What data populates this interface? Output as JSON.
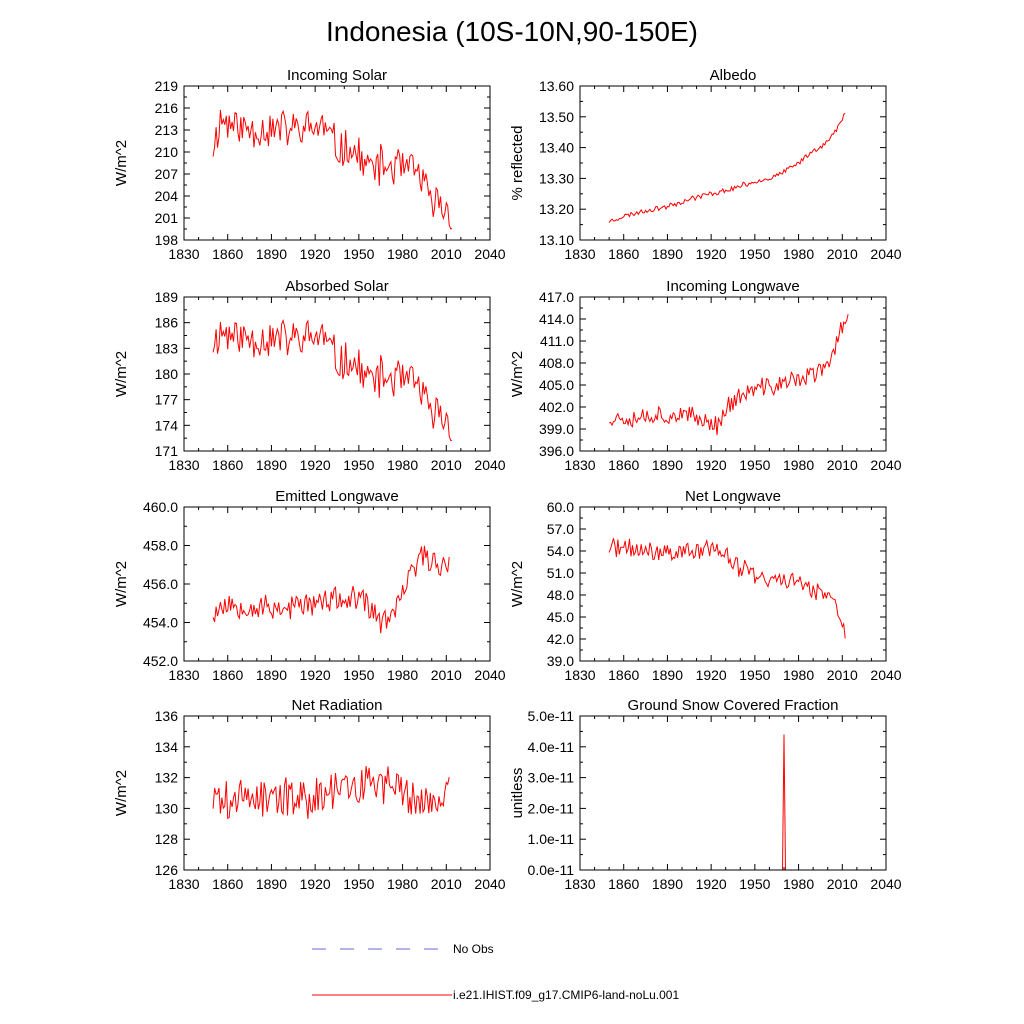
{
  "figure": {
    "title": "Indonesia (10S-10N,90-150E)",
    "legend": [
      {
        "label": "No Obs",
        "color": "#6a6ad0",
        "dash": "dashed"
      },
      {
        "label": "i.e21.IHIST.f09_g17.CMIP6-land-noLu.001",
        "color": "#ff0000",
        "dash": "solid"
      }
    ]
  },
  "chart_data": [
    {
      "type": "line",
      "title": "Incoming Solar",
      "xlabel": "",
      "ylabel": "W/m^2",
      "xlim": [
        1830,
        2040
      ],
      "ylim": [
        198,
        219
      ],
      "xticks": [
        "1830",
        "1860",
        "1890",
        "1920",
        "1950",
        "1980",
        "2010",
        "2040"
      ],
      "yticks": [
        "198",
        "201",
        "204",
        "207",
        "210",
        "213",
        "216",
        "219"
      ],
      "color": "#ff0000",
      "series": [
        {
          "x_start": 1850,
          "x_end": 2014,
          "anchors": [
            [
              1850,
              210.5
            ],
            [
              1855,
              214.5
            ],
            [
              1870,
              213.2
            ],
            [
              1890,
              213.2
            ],
            [
              1910,
              213
            ],
            [
              1925,
              213.5
            ],
            [
              1935,
              210.5
            ],
            [
              1945,
              210.5
            ],
            [
              1955,
              208
            ],
            [
              1975,
              208
            ],
            [
              1985,
              207.5
            ],
            [
              1993,
              207
            ],
            [
              1998,
              203
            ],
            [
              2005,
              203
            ],
            [
              2014,
              201
            ]
          ],
          "amp": 3.2,
          "seed": 11
        }
      ]
    },
    {
      "type": "line",
      "title": "Albedo",
      "xlabel": "",
      "ylabel": "% reflected",
      "xlim": [
        1830,
        2040
      ],
      "ylim": [
        13.1,
        13.6
      ],
      "xticks": [
        "1830",
        "1860",
        "1890",
        "1920",
        "1950",
        "1980",
        "2010",
        "2040"
      ],
      "yticks": [
        "13.10",
        "13.20",
        "13.30",
        "13.40",
        "13.50",
        "13.60"
      ],
      "color": "#ff0000",
      "series": [
        {
          "x_start": 1850,
          "x_end": 2012,
          "anchors": [
            [
              1850,
              13.16
            ],
            [
              1855,
              13.17
            ],
            [
              1870,
              13.19
            ],
            [
              1890,
              13.21
            ],
            [
              1910,
              13.24
            ],
            [
              1930,
              13.26
            ],
            [
              1950,
              13.29
            ],
            [
              1960,
              13.3
            ],
            [
              1970,
              13.32
            ],
            [
              1980,
              13.35
            ],
            [
              1990,
              13.39
            ],
            [
              2000,
              13.42
            ],
            [
              2005,
              13.45
            ],
            [
              2012,
              13.51
            ]
          ],
          "amp": 0.01,
          "seed": 23
        }
      ]
    },
    {
      "type": "line",
      "title": "Absorbed Solar",
      "xlabel": "",
      "ylabel": "W/m^2",
      "xlim": [
        1830,
        2040
      ],
      "ylim": [
        171,
        189
      ],
      "xticks": [
        "1830",
        "1860",
        "1890",
        "1920",
        "1950",
        "1980",
        "2010",
        "2040"
      ],
      "yticks": [
        "171",
        "174",
        "177",
        "180",
        "183",
        "186",
        "189"
      ],
      "color": "#ff0000",
      "series": [
        {
          "x_start": 1850,
          "x_end": 2014,
          "anchors": [
            [
              1850,
              183.5
            ],
            [
              1855,
              185
            ],
            [
              1870,
              184.2
            ],
            [
              1890,
              184.2
            ],
            [
              1910,
              184
            ],
            [
              1925,
              184.5
            ],
            [
              1935,
              181.5
            ],
            [
              1945,
              181.5
            ],
            [
              1955,
              179.5
            ],
            [
              1975,
              179.5
            ],
            [
              1985,
              179
            ],
            [
              1993,
              178.5
            ],
            [
              1998,
              175
            ],
            [
              2005,
              175.5
            ],
            [
              2014,
              173.5
            ]
          ],
          "amp": 2.8,
          "seed": 11
        }
      ]
    },
    {
      "type": "line",
      "title": "Incoming Longwave",
      "xlabel": "",
      "ylabel": "W/m^2",
      "xlim": [
        1830,
        2040
      ],
      "ylim": [
        396,
        417
      ],
      "xticks": [
        "1830",
        "1860",
        "1890",
        "1920",
        "1950",
        "1980",
        "2010",
        "2040"
      ],
      "yticks": [
        "396.0",
        "399.0",
        "402.0",
        "405.0",
        "408.0",
        "411.0",
        "414.0",
        "417.0"
      ],
      "color": "#ff0000",
      "series": [
        {
          "x_start": 1850,
          "x_end": 2014,
          "anchors": [
            [
              1850,
              400.5
            ],
            [
              1870,
              400.8
            ],
            [
              1890,
              401
            ],
            [
              1910,
              400.5
            ],
            [
              1925,
              399.5
            ],
            [
              1930,
              402
            ],
            [
              1945,
              404
            ],
            [
              1960,
              404.8
            ],
            [
              1975,
              405.5
            ],
            [
              1990,
              406.5
            ],
            [
              2000,
              407.5
            ],
            [
              2005,
              410
            ],
            [
              2012,
              414.5
            ]
          ],
          "amp": 1.6,
          "seed": 37
        }
      ]
    },
    {
      "type": "line",
      "title": "Emitted Longwave",
      "xlabel": "",
      "ylabel": "W/m^2",
      "xlim": [
        1830,
        2040
      ],
      "ylim": [
        452,
        460
      ],
      "xticks": [
        "1830",
        "1860",
        "1890",
        "1920",
        "1950",
        "1980",
        "2010",
        "2040"
      ],
      "yticks": [
        "452.0",
        "454.0",
        "456.0",
        "458.0",
        "460.0"
      ],
      "color": "#ff0000",
      "series": [
        {
          "x_start": 1850,
          "x_end": 2012,
          "anchors": [
            [
              1850,
              454.5
            ],
            [
              1860,
              455
            ],
            [
              1880,
              454.8
            ],
            [
              1900,
              454.8
            ],
            [
              1920,
              455
            ],
            [
              1940,
              455.2
            ],
            [
              1955,
              455
            ],
            [
              1965,
              454
            ],
            [
              1975,
              454.5
            ],
            [
              1985,
              456.5
            ],
            [
              1995,
              457.5
            ],
            [
              2005,
              457
            ],
            [
              2012,
              457.2
            ]
          ],
          "amp": 0.8,
          "seed": 53
        }
      ]
    },
    {
      "type": "line",
      "title": "Net Longwave",
      "xlabel": "",
      "ylabel": "W/m^2",
      "xlim": [
        1830,
        2040
      ],
      "ylim": [
        39,
        60
      ],
      "xticks": [
        "1830",
        "1860",
        "1890",
        "1920",
        "1950",
        "1980",
        "2010",
        "2040"
      ],
      "yticks": [
        "39.0",
        "42.0",
        "45.0",
        "48.0",
        "51.0",
        "54.0",
        "57.0",
        "60.0"
      ],
      "color": "#ff0000",
      "series": [
        {
          "x_start": 1850,
          "x_end": 2012,
          "anchors": [
            [
              1850,
              54.5
            ],
            [
              1870,
              54
            ],
            [
              1890,
              53.8
            ],
            [
              1910,
              54
            ],
            [
              1925,
              54.5
            ],
            [
              1935,
              52
            ],
            [
              1945,
              51.5
            ],
            [
              1955,
              50
            ],
            [
              1970,
              50
            ],
            [
              1985,
              49.5
            ],
            [
              1995,
              48.5
            ],
            [
              2005,
              46.5
            ],
            [
              2012,
              42.5
            ]
          ],
          "amp": 1.7,
          "seed": 71
        }
      ]
    },
    {
      "type": "line",
      "title": "Net Radiation",
      "xlabel": "",
      "ylabel": "W/m^2",
      "xlim": [
        1830,
        2040
      ],
      "ylim": [
        126,
        136
      ],
      "xticks": [
        "1830",
        "1860",
        "1890",
        "1920",
        "1950",
        "1980",
        "2010",
        "2040"
      ],
      "yticks": [
        "126",
        "128",
        "130",
        "132",
        "134",
        "136"
      ],
      "color": "#ff0000",
      "series": [
        {
          "x_start": 1850,
          "x_end": 2012,
          "anchors": [
            [
              1850,
              130.5
            ],
            [
              1880,
              130.8
            ],
            [
              1900,
              130.6
            ],
            [
              1920,
              130.8
            ],
            [
              1940,
              131.5
            ],
            [
              1960,
              131.8
            ],
            [
              1975,
              131.3
            ],
            [
              1990,
              130.5
            ],
            [
              2000,
              130.2
            ],
            [
              2012,
              131
            ]
          ],
          "amp": 1.6,
          "seed": 89
        }
      ]
    },
    {
      "type": "line",
      "title": "Ground Snow Covered Fraction",
      "xlabel": "",
      "ylabel": "unitless",
      "xlim": [
        1830,
        2040
      ],
      "ylim": [
        0,
        5e-11
      ],
      "xticks": [
        "1830",
        "1860",
        "1890",
        "1920",
        "1950",
        "1980",
        "2010",
        "2040"
      ],
      "yticks": [
        "0.0e-11",
        "1.0e-11",
        "2.0e-11",
        "3.0e-11",
        "4.0e-11",
        "5.0e-11"
      ],
      "color": "#ff0000",
      "series": [
        {
          "x": [
            1850,
            1969,
            1970,
            1971,
            2012
          ],
          "y": [
            0,
            0,
            4.4e-11,
            0,
            0
          ]
        }
      ]
    }
  ]
}
